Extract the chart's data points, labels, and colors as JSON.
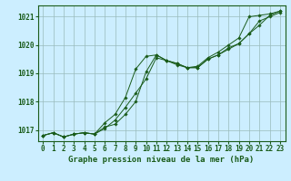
{
  "title": "Graphe pression niveau de la mer (hPa)",
  "xlabel_hours": [
    0,
    1,
    2,
    3,
    4,
    5,
    6,
    7,
    8,
    9,
    10,
    11,
    12,
    13,
    14,
    15,
    16,
    17,
    18,
    19,
    20,
    21,
    22,
    23
  ],
  "line1": [
    1016.8,
    1016.9,
    1016.75,
    1016.85,
    1016.9,
    1016.85,
    1017.05,
    1017.35,
    1017.8,
    1018.3,
    1018.8,
    1019.55,
    1019.45,
    1019.3,
    1019.2,
    1019.2,
    1019.5,
    1019.65,
    1019.9,
    1020.05,
    1020.4,
    1020.85,
    1021.0,
    1021.15
  ],
  "line2": [
    1016.8,
    1016.9,
    1016.75,
    1016.85,
    1016.9,
    1016.85,
    1017.25,
    1017.55,
    1018.15,
    1019.15,
    1019.6,
    1019.65,
    1019.45,
    1019.35,
    1019.2,
    1019.25,
    1019.55,
    1019.75,
    1020.0,
    1020.25,
    1021.0,
    1021.05,
    1021.1,
    1021.2
  ],
  "line3": [
    1016.8,
    1016.9,
    1016.75,
    1016.85,
    1016.9,
    1016.85,
    1017.1,
    1017.2,
    1017.55,
    1018.0,
    1019.05,
    1019.65,
    1019.45,
    1019.35,
    1019.2,
    1019.2,
    1019.5,
    1019.65,
    1019.85,
    1020.05,
    1020.4,
    1020.7,
    1021.05,
    1021.2
  ],
  "ylim": [
    1016.6,
    1021.4
  ],
  "yticks": [
    1017,
    1018,
    1019,
    1020,
    1021
  ],
  "line_color": "#1a5c1a",
  "marker_color": "#1a5c1a",
  "bg_color": "#cceeff",
  "grid_color": "#99bbbb",
  "axis_color": "#1a5c1a",
  "title_color": "#1a5c1a",
  "title_fontsize": 6.5,
  "tick_fontsize": 5.5
}
